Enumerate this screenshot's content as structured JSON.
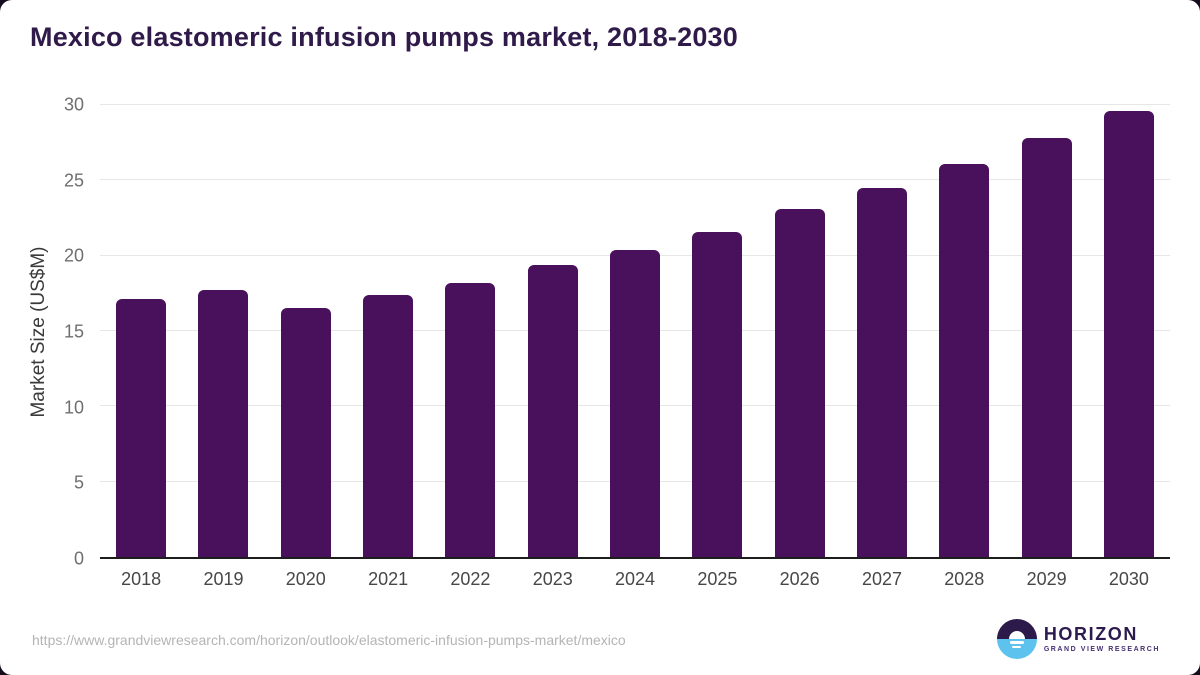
{
  "title": "Mexico elastomeric infusion pumps market, 2018-2030",
  "footer": {
    "source_url": "https://www.grandviewresearch.com/horizon/outlook/elastomeric-infusion-pumps-market/mexico",
    "logo": {
      "name": "HORIZON",
      "subtitle": "GRAND VIEW RESEARCH"
    }
  },
  "colors": {
    "bar": "#49105c",
    "title_text": "#2f1a4a",
    "logo_purple": "#2b1a4a",
    "logo_blue": "#5ec2ee",
    "gridline": "#e7e7e7",
    "axis_line": "#1d1d1d"
  },
  "chart_data": {
    "type": "bar",
    "title": "Mexico elastomeric infusion pumps market, 2018-2030",
    "categories": [
      "2018",
      "2019",
      "2020",
      "2021",
      "2022",
      "2023",
      "2024",
      "2025",
      "2026",
      "2027",
      "2028",
      "2029",
      "2030"
    ],
    "values": [
      17.1,
      17.7,
      16.5,
      17.4,
      18.2,
      19.4,
      20.4,
      21.6,
      23.1,
      24.5,
      26.1,
      27.8,
      29.6
    ],
    "xlabel": "",
    "ylabel": "Market Size (US$M)",
    "ylim": [
      0,
      30
    ],
    "yticks": [
      0,
      5,
      10,
      15,
      20,
      25,
      30
    ],
    "grid": "horizontal-only",
    "legend": "none"
  }
}
